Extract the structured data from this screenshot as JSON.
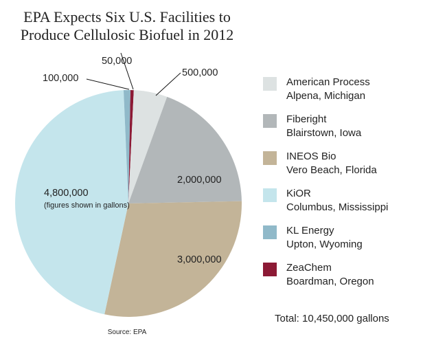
{
  "chart_data": {
    "type": "pie",
    "title": [
      "EPA Expects Six U.S. Facilities to",
      "Produce Cellulosic Biofuel in 2012"
    ],
    "unit_note": "(figures shown in gallons)",
    "source": "Source: EPA",
    "total_label": "Total: 10,450,000 gallons",
    "slices": [
      {
        "name": "ZeaChem",
        "location": "Boardman, Oregon",
        "value": 50000,
        "label": "50,000",
        "color": "#8c1a35"
      },
      {
        "name": "American Process",
        "location": "Alpena, Michigan",
        "value": 500000,
        "label": "500,000",
        "color": "#dde2e2"
      },
      {
        "name": "Fiberight",
        "location": "Blairstown, Iowa",
        "value": 2000000,
        "label": "2,000,000",
        "color": "#b2b7b9"
      },
      {
        "name": "INEOS Bio",
        "location": "Vero Beach, Florida",
        "value": 3000000,
        "label": "3,000,000",
        "color": "#c3b498"
      },
      {
        "name": "KiOR",
        "location": "Columbus, Mississippi",
        "value": 4800000,
        "label": "4,800,000",
        "color": "#c4e5ec"
      },
      {
        "name": "KL Energy",
        "location": "Upton, Wyoming",
        "value": 100000,
        "label": "100,000",
        "color": "#90b9c9"
      }
    ],
    "legend_order": [
      1,
      2,
      3,
      4,
      5,
      0
    ]
  }
}
